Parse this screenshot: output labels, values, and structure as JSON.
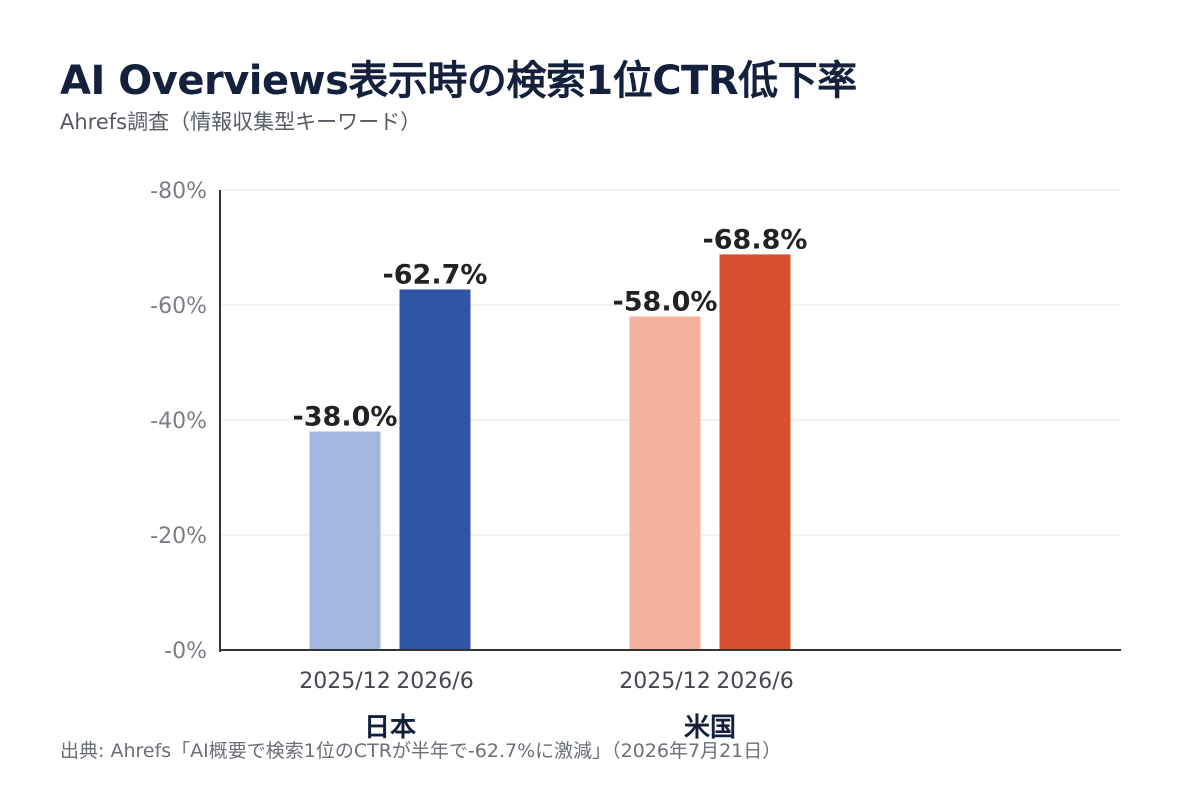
{
  "header": {
    "title": "AI Overviews表示時の検索1位CTR低下率",
    "subtitle": "Ahrefs調査（情報収集型キーワード）"
  },
  "footer": {
    "source": "出典: Ahrefs「AI概要で検索1位のCTRが半年で-62.7%に激減」（2026年7月21日）"
  },
  "chart_data": {
    "type": "bar",
    "title": "AI Overviews表示時の検索1位CTR低下率",
    "subtitle": "Ahrefs調査（情報収集型キーワード）",
    "xlabel": "",
    "ylabel": "",
    "ylim": [
      0,
      -80
    ],
    "y_ticks": [
      0,
      -20,
      -40,
      -60,
      -80
    ],
    "y_tick_labels": [
      "-0%",
      "-20%",
      "-40%",
      "-60%",
      "-80%"
    ],
    "grid": true,
    "groups": [
      {
        "name": "日本",
        "bars": [
          {
            "category": "2025/12",
            "value": -38.0,
            "label": "-38.0%",
            "color": "#a3b8e0"
          },
          {
            "category": "2026/6",
            "value": -62.7,
            "label": "-62.7%",
            "color": "#3155a6"
          }
        ]
      },
      {
        "name": "米国",
        "bars": [
          {
            "category": "2025/12",
            "value": -58.0,
            "label": "-58.0%",
            "color": "#f4b19c"
          },
          {
            "category": "2026/6",
            "value": -68.8,
            "label": "-68.8%",
            "color": "#d9502e"
          }
        ]
      }
    ]
  }
}
